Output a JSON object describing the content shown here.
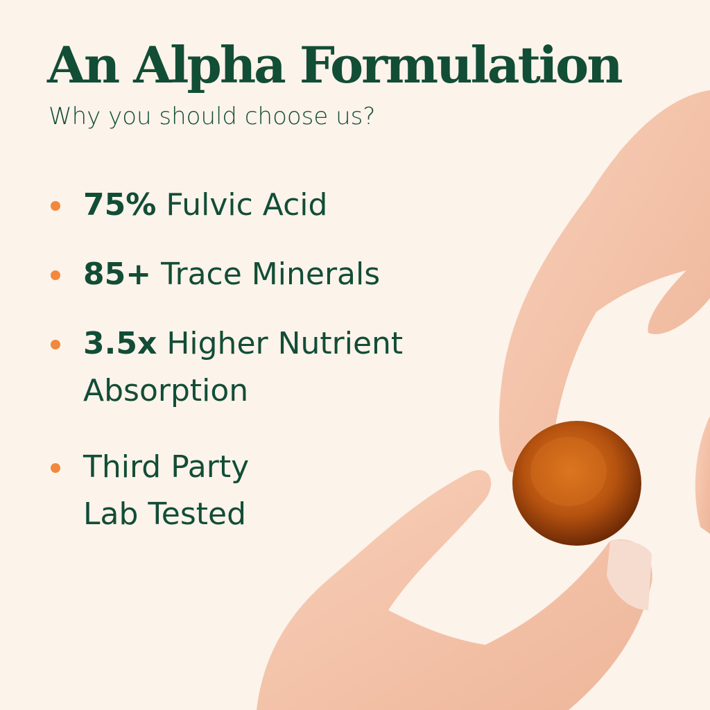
{
  "header": {
    "title": "An Alpha Formulation",
    "subtitle": "Why you should choose us?"
  },
  "features": [
    {
      "highlight": "75%",
      "text": " Fulvic Acid",
      "line2": ""
    },
    {
      "highlight": "85+",
      "text": " Trace Minerals",
      "line2": ""
    },
    {
      "highlight": "3.5x",
      "text": " Higher Nutrient",
      "line2": "Absorption"
    },
    {
      "highlight": "",
      "text": "Third Party",
      "line2": "Lab Tested"
    }
  ],
  "colors": {
    "background": "#fcf3eb",
    "text": "#124d36",
    "bullet": "#f2883d",
    "gummy": "#a8470f"
  },
  "image": {
    "subject": "hand holding amber gummy"
  }
}
